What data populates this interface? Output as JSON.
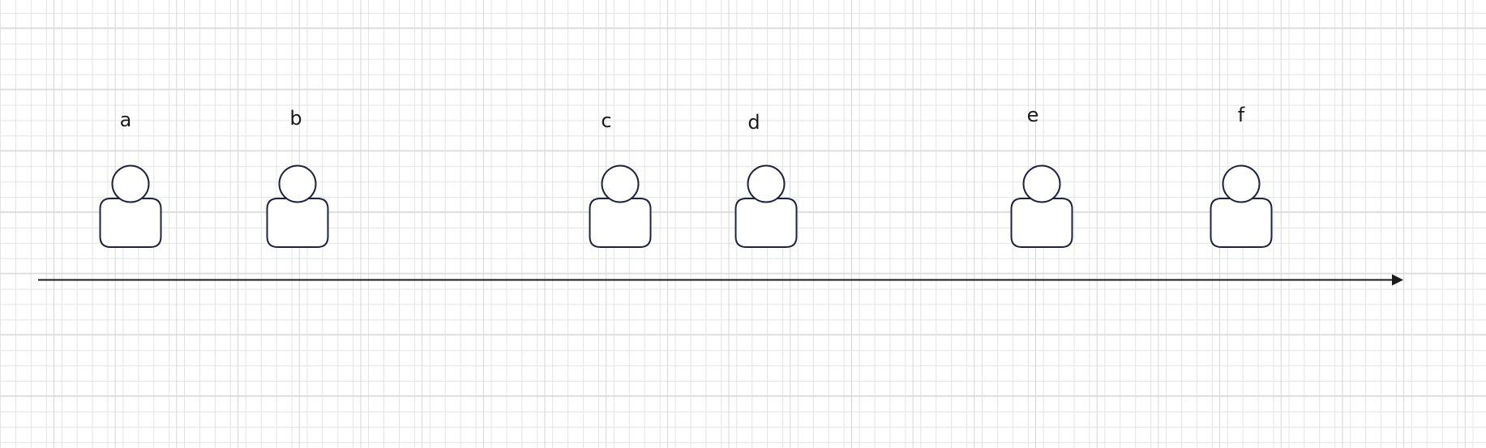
{
  "diagram": {
    "persons": [
      {
        "id": "a",
        "label": "a"
      },
      {
        "id": "b",
        "label": "b"
      },
      {
        "id": "c",
        "label": "c"
      },
      {
        "id": "d",
        "label": "d"
      },
      {
        "id": "e",
        "label": "e"
      },
      {
        "id": "f",
        "label": "f"
      }
    ],
    "icon": "user-icon",
    "connector": "timeline-arrow",
    "colors": {
      "outline": "#1f2340",
      "arrow": "#1a1a1a",
      "grid": "#e4e4e4",
      "background": "#ffffff"
    }
  }
}
